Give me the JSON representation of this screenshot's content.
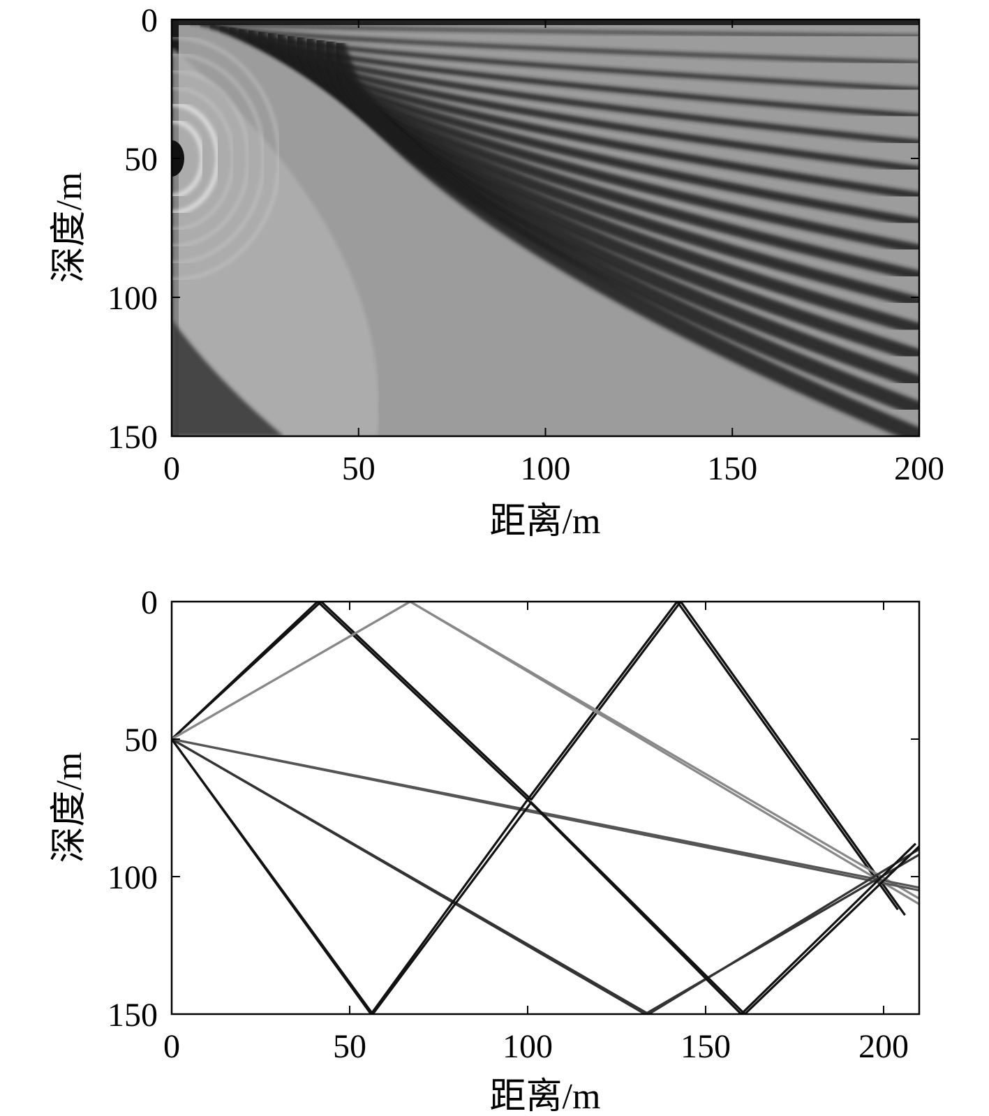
{
  "chart_data": [
    {
      "type": "heatmap",
      "title": "",
      "xlabel": "距离/m",
      "ylabel": "深度/m",
      "xlim": [
        0,
        200
      ],
      "ylim": [
        0,
        150
      ],
      "y_inverted": true,
      "xticks": [
        "0",
        "50",
        "100",
        "150",
        "200"
      ],
      "yticks": [
        "0",
        "50",
        "100",
        "150"
      ],
      "colormap": "gray",
      "source": {
        "range": 0,
        "depth": 50
      },
      "description_values": {
        "interference_fringes": "curved dark fringes radiating from the source at 50 m depth, denser toward the surface and large range"
      }
    },
    {
      "type": "line",
      "title": "",
      "xlabel": "距离/m",
      "ylabel": "深度/m",
      "xlim": [
        0,
        210
      ],
      "ylim": [
        0,
        150
      ],
      "y_inverted": true,
      "xticks": [
        "0",
        "50",
        "100",
        "150",
        "200"
      ],
      "yticks": [
        "0",
        "50",
        "100",
        "150"
      ],
      "series": [
        {
          "color": "#111111",
          "x": [
            0,
            41,
            100,
            142,
            204
          ],
          "y": [
            50,
            0,
            72,
            0,
            112
          ]
        },
        {
          "color": "#111111",
          "x": [
            0,
            42,
            101,
            143,
            206
          ],
          "y": [
            50,
            0,
            72,
            0,
            114
          ]
        },
        {
          "color": "#888888",
          "x": [
            0,
            67,
            210
          ],
          "y": [
            50,
            0,
            108
          ]
        },
        {
          "color": "#888888",
          "x": [
            0,
            67,
            210
          ],
          "y": [
            50,
            0,
            110
          ]
        },
        {
          "color": "#555555",
          "x": [
            0,
            210
          ],
          "y": [
            50,
            104
          ]
        },
        {
          "color": "#555555",
          "x": [
            0,
            210
          ],
          "y": [
            50,
            105
          ]
        },
        {
          "color": "#333333",
          "x": [
            0,
            134,
            210
          ],
          "y": [
            50,
            150,
            90
          ]
        },
        {
          "color": "#333333",
          "x": [
            0,
            133,
            210
          ],
          "y": [
            50,
            150,
            92
          ]
        },
        {
          "color": "#111111",
          "x": [
            0,
            56,
            100,
            160,
            209
          ],
          "y": [
            50,
            150,
            72,
            150,
            88
          ]
        },
        {
          "color": "#111111",
          "x": [
            0,
            56.5,
            101,
            161,
            210
          ],
          "y": [
            50,
            150,
            73,
            150,
            89
          ]
        }
      ]
    }
  ]
}
